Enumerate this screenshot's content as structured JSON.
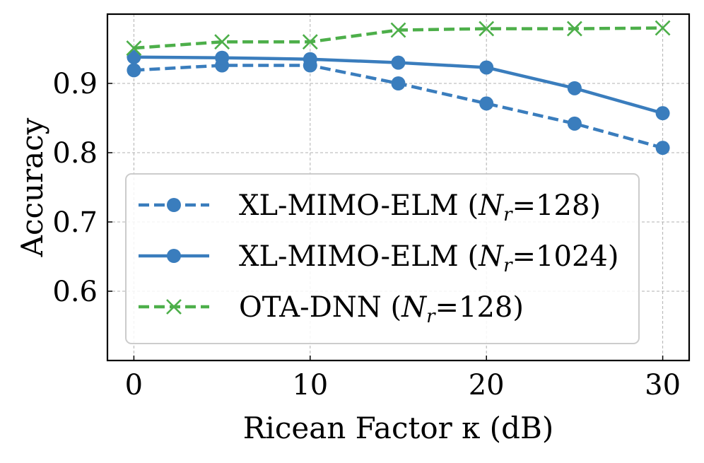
{
  "chart_data": {
    "type": "line",
    "title": "",
    "xlabel": "Ricean Factor κ (dB)",
    "ylabel": "Accuracy",
    "x": [
      0,
      5,
      10,
      15,
      20,
      25,
      30
    ],
    "xlim": [
      -1.5,
      31.5
    ],
    "ylim": [
      0.5,
      1.0
    ],
    "xticks": [
      0,
      10,
      20,
      30
    ],
    "xtick_labels": [
      "0",
      "10",
      "20",
      "30"
    ],
    "yticks": [
      0.6,
      0.7,
      0.8,
      0.9
    ],
    "ytick_labels": [
      "0.6",
      "0.7",
      "0.8",
      "0.9"
    ],
    "grid": true,
    "legend_position": "lower-left",
    "series": [
      {
        "name": "XL-MIMO-ELM",
        "param_label": "N",
        "param_sub": "r",
        "param_value": "=128",
        "values": [
          0.919,
          0.926,
          0.926,
          0.9,
          0.871,
          0.842,
          0.807
        ],
        "color": "#3a7dbd",
        "linestyle": "dashed",
        "marker": "circle"
      },
      {
        "name": "XL-MIMO-ELM",
        "param_label": "N",
        "param_sub": "r",
        "param_value": "=1024",
        "values": [
          0.938,
          0.937,
          0.935,
          0.93,
          0.923,
          0.893,
          0.857
        ],
        "color": "#3a7dbd",
        "linestyle": "solid",
        "marker": "circle"
      },
      {
        "name": "OTA-DNN",
        "param_label": "N",
        "param_sub": "r",
        "param_value": "=128",
        "values": [
          0.951,
          0.96,
          0.96,
          0.977,
          0.979,
          0.979,
          0.98
        ],
        "color": "#4daf4a",
        "linestyle": "dashed",
        "marker": "x"
      }
    ]
  }
}
